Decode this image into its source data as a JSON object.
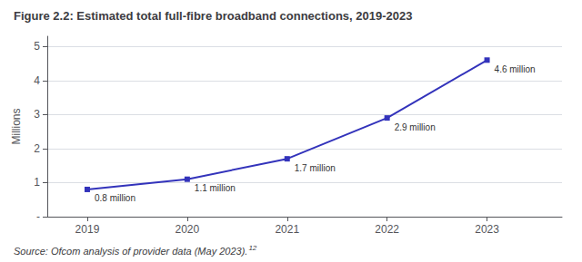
{
  "chart_data": {
    "type": "line",
    "title": "Figure 2.2: Estimated total full-fibre broadband connections, 2019-2023",
    "annotations": [
      "Source: Ofcom analysis of provider data (May 2023).",
      "12"
    ],
    "ylabel": "Millions",
    "x": [
      2019,
      2020,
      2021,
      2022,
      2023
    ],
    "values": [
      0.8,
      1.1,
      1.7,
      2.9,
      4.6
    ],
    "value_labels": [
      "0.8 million",
      "1.1 million",
      "1.7 million",
      "2.9 million",
      "4.6 million"
    ],
    "data_labels": true,
    "color": "#3333bb",
    "marker": "square",
    "xlim": [
      2018.6,
      2023.75
    ],
    "xticks": [
      2019,
      2020,
      2021,
      2022,
      2023
    ],
    "ylim": [
      0,
      5.3
    ],
    "yticks": [
      {
        "value": 0,
        "label": "-"
      },
      1,
      2,
      3,
      4,
      5
    ],
    "grid": true
  }
}
